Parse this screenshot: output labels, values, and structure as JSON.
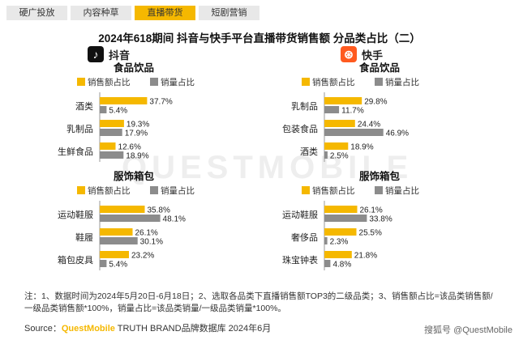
{
  "tabs": [
    "硬广投放",
    "内容种草",
    "直播带货",
    "短剧营销"
  ],
  "active_tab": 2,
  "title": "2024年618期间 抖音与快手平台直播带货销售额 分品类占比（二）",
  "platforms": [
    {
      "name": "抖音",
      "icon": "tiktok-icon",
      "color": "#111111"
    },
    {
      "name": "快手",
      "icon": "kuaishou-icon",
      "color": "#ff5a1f"
    }
  ],
  "background_watermark": "QUESTMOBILE",
  "colors": {
    "sales": "#f5b800",
    "volume": "#8c8c8c",
    "accent": "#f5b800"
  },
  "chart_data": [
    {
      "type": "bar",
      "title": "食品饮品",
      "platform": "抖音",
      "legend": [
        "销售额占比",
        "销量占比"
      ],
      "categories": [
        "酒类",
        "乳制品",
        "生鲜食品"
      ],
      "series": [
        {
          "name": "销售额占比",
          "values": [
            37.7,
            19.3,
            12.6
          ]
        },
        {
          "name": "销量占比",
          "values": [
            5.4,
            17.9,
            18.9
          ]
        }
      ]
    },
    {
      "type": "bar",
      "title": "食品饮品",
      "platform": "快手",
      "legend": [
        "销售额占比",
        "销量占比"
      ],
      "categories": [
        "乳制品",
        "包装食品",
        "酒类"
      ],
      "series": [
        {
          "name": "销售额占比",
          "values": [
            29.8,
            24.4,
            18.9
          ]
        },
        {
          "name": "销量占比",
          "values": [
            11.7,
            46.9,
            2.5
          ]
        }
      ]
    },
    {
      "type": "bar",
      "title": "服饰箱包",
      "platform": "抖音",
      "legend": [
        "销售额占比",
        "销量占比"
      ],
      "categories": [
        "运动鞋服",
        "鞋履",
        "箱包皮具"
      ],
      "series": [
        {
          "name": "销售额占比",
          "values": [
            35.8,
            26.1,
            23.2
          ]
        },
        {
          "name": "销量占比",
          "values": [
            48.1,
            30.1,
            5.4
          ]
        }
      ]
    },
    {
      "type": "bar",
      "title": "服饰箱包",
      "platform": "快手",
      "legend": [
        "销售额占比",
        "销量占比"
      ],
      "categories": [
        "运动鞋服",
        "奢侈品",
        "珠宝钟表"
      ],
      "series": [
        {
          "name": "销售额占比",
          "values": [
            26.1,
            25.5,
            21.8
          ]
        },
        {
          "name": "销量占比",
          "values": [
            33.8,
            2.3,
            4.8
          ]
        }
      ]
    }
  ],
  "footnote": "注：1、数据时间为2024年5月20日-6月18日；2、选取各品类下直播销售额TOP3的二级品类；3、销售额占比=该品类销售额/一级品类销售额*100%，销量占比=该品类销量/一级品类销量*100%。",
  "source": {
    "prefix": "Source：",
    "brand": "QuestMobile",
    "rest": " TRUTH BRAND品牌数据库 2024年6月"
  },
  "watermark": "搜狐号 @QuestMobile"
}
